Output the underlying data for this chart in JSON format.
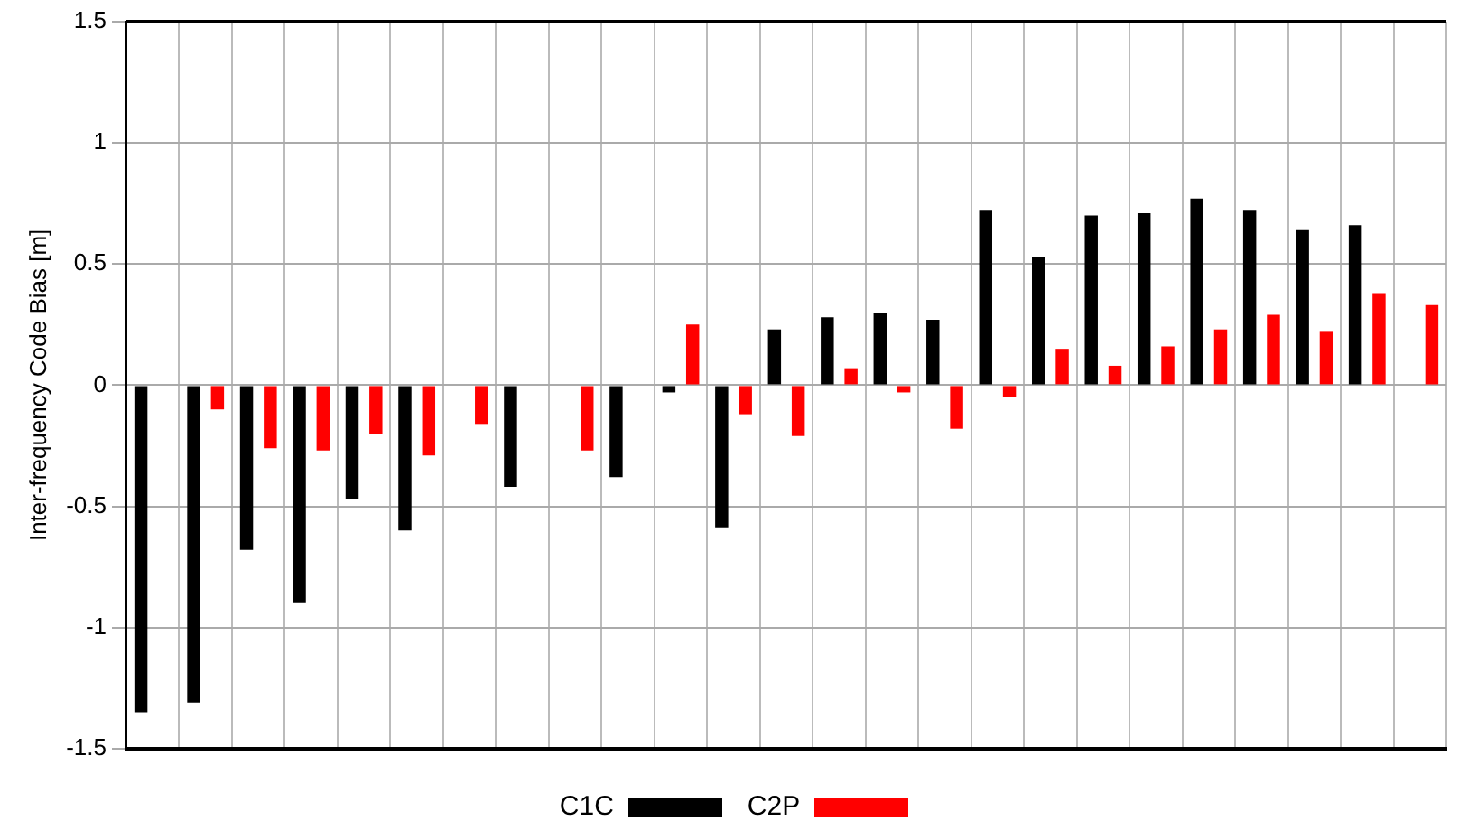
{
  "chart_data": {
    "type": "bar",
    "ylabel": "Inter-frequency Code Bias [m]",
    "categories": [
      null,
      null,
      null,
      null,
      null,
      null,
      null,
      null,
      null,
      null,
      null,
      null,
      null,
      null,
      null,
      null,
      null,
      null,
      null,
      null,
      null,
      null,
      null,
      null,
      null
    ],
    "series": [
      {
        "name": "C1C",
        "color": "#000000",
        "values": [
          -1.35,
          -1.31,
          -0.68,
          -0.9,
          -0.47,
          -0.6,
          null,
          -0.42,
          null,
          -0.38,
          -0.03,
          -0.59,
          0.23,
          0.28,
          0.3,
          0.27,
          0.72,
          0.53,
          0.7,
          0.71,
          0.77,
          0.72,
          0.64,
          0.66,
          null
        ]
      },
      {
        "name": "C2P",
        "color": "#ff0000",
        "values": [
          null,
          -0.1,
          -0.26,
          -0.27,
          -0.2,
          -0.29,
          -0.16,
          null,
          -0.27,
          null,
          0.25,
          -0.12,
          -0.21,
          0.07,
          -0.03,
          -0.18,
          -0.05,
          0.15,
          0.08,
          0.16,
          0.23,
          0.29,
          0.22,
          0.38,
          0.33
        ]
      }
    ],
    "ylim": [
      -1.5,
      1.5
    ],
    "yticks": [
      -1.5,
      -1,
      -0.5,
      0,
      0.5,
      1,
      1.5
    ],
    "grid": true,
    "legend": "bottom"
  }
}
